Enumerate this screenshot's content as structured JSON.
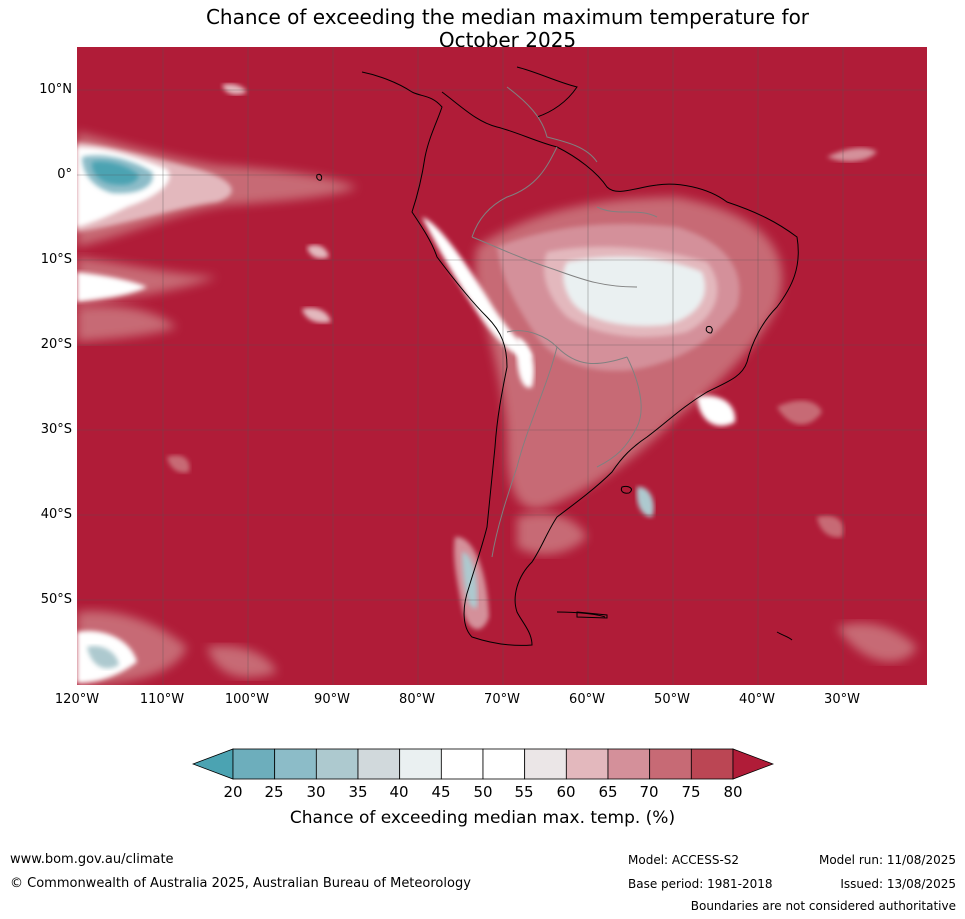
{
  "title_line1": "Chance of exceeding the median maximum temperature for",
  "title_line2": "October 2025",
  "latitude_labels": [
    "10°N",
    "0°",
    "10°S",
    "20°S",
    "30°S",
    "40°S",
    "50°S"
  ],
  "longitude_labels": [
    "120°W",
    "110°W",
    "100°W",
    "90°W",
    "80°W",
    "70°W",
    "60°W",
    "50°W",
    "40°W",
    "30°W"
  ],
  "colorbar": {
    "ticks": [
      "20",
      "25",
      "30",
      "35",
      "40",
      "45",
      "50",
      "55",
      "60",
      "65",
      "70",
      "75",
      "80"
    ],
    "colors": [
      "#4ba3b2",
      "#6daebc",
      "#8cbcc8",
      "#adc9cf",
      "#d1d9dc",
      "#eaf0f1",
      "#ffffff",
      "#ffffff",
      "#ebe6e7",
      "#e3b8bd",
      "#d4909a",
      "#c76a75",
      "#bb4654",
      "#b01c38"
    ],
    "label": "Chance of exceeding median max. temp. (%)"
  },
  "map_colors": {
    "ocean_high": "#b01c38",
    "land_outline": "#000000",
    "border": "#808080"
  },
  "footer": {
    "website": "www.bom.gov.au/climate",
    "copyright": "© Commonwealth of Australia 2025, Australian Bureau of Meteorology",
    "model": "Model: ACCESS-S2",
    "base_period": "Base period: 1981-2018",
    "model_run": "Model run: 11/08/2025",
    "issued": "Issued: 13/08/2025",
    "disclaimer": "Boundaries are not considered authoritative"
  }
}
